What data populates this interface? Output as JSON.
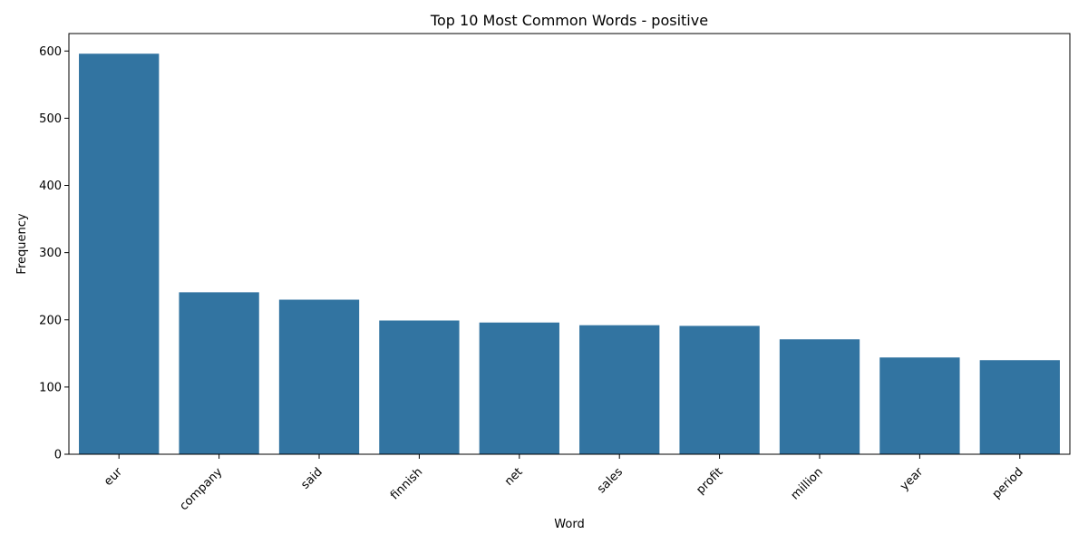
{
  "chart_data": {
    "type": "bar",
    "title": "Top 10 Most Common Words - positive",
    "xlabel": "Word",
    "ylabel": "Frequency",
    "categories": [
      "eur",
      "company",
      "said",
      "finnish",
      "net",
      "sales",
      "profit",
      "million",
      "year",
      "period"
    ],
    "values": [
      596,
      241,
      230,
      199,
      196,
      192,
      191,
      171,
      144,
      140
    ],
    "ylim": [
      0,
      626
    ],
    "yticks": [
      0,
      100,
      200,
      300,
      400,
      500,
      600
    ],
    "bar_color": "#3274a1",
    "grid": false,
    "legend": "none"
  }
}
